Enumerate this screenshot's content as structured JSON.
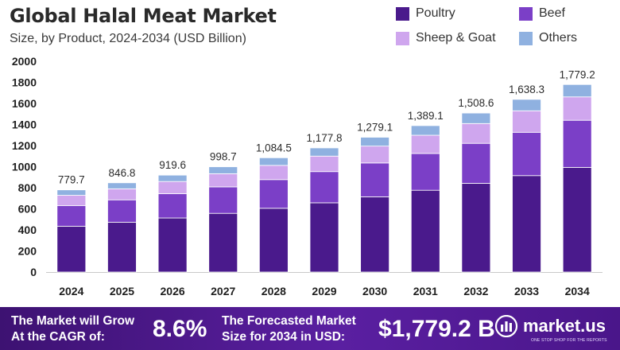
{
  "colors": {
    "poultry": "#4a1a8c",
    "beef": "#7b3fc7",
    "sheep_goat": "#cfa6ee",
    "others": "#8fb1e0",
    "footer_bg": "#4a168a"
  },
  "legend": [
    {
      "label": "Poultry",
      "color": "#4a1a8c"
    },
    {
      "label": "Beef",
      "color": "#7b3fc7"
    },
    {
      "label": "Sheep & Goat",
      "color": "#cfa6ee"
    },
    {
      "label": "Others",
      "color": "#8fb1e0"
    }
  ],
  "chart_data": {
    "type": "bar",
    "stacked": true,
    "title": "Global Halal Meat Market",
    "subtitle": "Size, by Product, 2024-2034 (USD Billion)",
    "xlabel": "",
    "ylabel": "",
    "ylim": [
      0,
      2000
    ],
    "yticks": [
      "0",
      "200",
      "400",
      "600",
      "800",
      "1000",
      "1200",
      "1400",
      "1600",
      "1800",
      "2000"
    ],
    "grid": false,
    "legend_position": "top-right",
    "categories": [
      "2024",
      "2025",
      "2026",
      "2027",
      "2028",
      "2029",
      "2030",
      "2031",
      "2032",
      "2033",
      "2034"
    ],
    "totals": [
      "779.7",
      "846.8",
      "919.6",
      "998.7",
      "1,084.5",
      "1,177.8",
      "1,279.1",
      "1,389.1",
      "1,508.6",
      "1,638.3",
      "1,779.2"
    ],
    "series": [
      {
        "name": "Poultry",
        "values": [
          435,
          473,
          513,
          557,
          605,
          657,
          714,
          776,
          842,
          915,
          993
        ]
      },
      {
        "name": "Beef",
        "values": [
          196,
          212,
          231,
          251,
          272,
          296,
          321,
          349,
          379,
          411,
          447
        ]
      },
      {
        "name": "Sheep & Goat",
        "values": [
          97,
          105,
          115,
          125,
          135,
          147,
          160,
          173,
          188,
          204,
          222
        ]
      },
      {
        "name": "Others",
        "values": [
          51.7,
          56.8,
          60.6,
          65.7,
          72.5,
          77.8,
          84.1,
          91.1,
          99.6,
          108.3,
          117.2
        ]
      }
    ]
  },
  "footer": {
    "cagr_label_line1": "The Market will Grow",
    "cagr_label_line2": "At the CAGR of:",
    "cagr_value": "8.6%",
    "forecast_label_line1": "The Forecasted Market",
    "forecast_label_line2": "Size for 2034 in USD:",
    "forecast_value": "$1,779.2 B",
    "brand": "market.us",
    "brand_tagline": "ONE STOP SHOP FOR THE REPORTS"
  }
}
